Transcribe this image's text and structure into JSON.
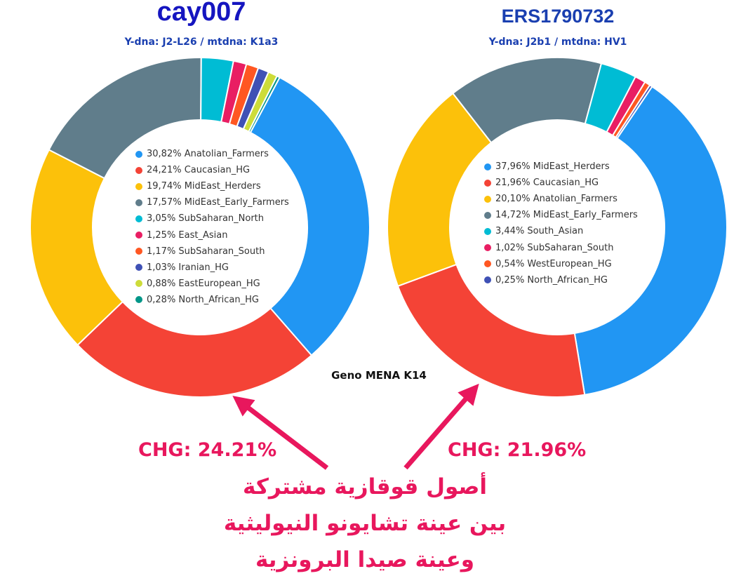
{
  "colors": {
    "Anatolian_Farmers": "#2196f3",
    "Caucasian_HG": "#f44336",
    "MidEast_Herders": "#fcc10a",
    "MidEast_Early_Farmers": "#607d8b",
    "SubSaharan_North": "#00bcd4",
    "South_Asian": "#00bcd4",
    "East_Asian": "#e91e63",
    "SubSaharan_South_left": "#ff5722",
    "SubSaharan_South_right": "#e91e63",
    "Iranian_HG": "#3f51b5",
    "EastEuropean_HG": "#cddc39",
    "North_African_HG_left": "#009688",
    "WestEuropean_HG": "#ff5722",
    "North_African_HG_right": "#3f51b5",
    "annotation": "#e8175d",
    "title_left": "#1515c0",
    "title_right": "#1a3fb0"
  },
  "center_label": "Geno MENA K14",
  "annotations": {
    "chg_left": "CHG: 24.21%",
    "chg_right": "CHG: 21.96%",
    "arabic_lines": [
      "أصول قوقازية مشتركة",
      "بين عينة تشايونو النيوليثية",
      "وعينة صيدا البرونزية"
    ]
  },
  "chart_data": [
    {
      "type": "pie",
      "variant": "donut",
      "title": "cay007",
      "subtitle": "Y-dna: J2-L26 / mtdna: K1a3",
      "legend_placement": "inside",
      "slices": [
        {
          "label": "30,82% Anatolian_Farmers",
          "name": "Anatolian_Farmers",
          "value": 30.82,
          "color": "#2196f3"
        },
        {
          "label": "24,21% Caucasian_HG",
          "name": "Caucasian_HG",
          "value": 24.21,
          "color": "#f44336"
        },
        {
          "label": "19,74% MidEast_Herders",
          "name": "MidEast_Herders",
          "value": 19.74,
          "color": "#fcc10a"
        },
        {
          "label": "17,57% MidEast_Early_Farmers",
          "name": "MidEast_Early_Farmers",
          "value": 17.57,
          "color": "#607d8b"
        },
        {
          "label": "3,05% SubSaharan_North",
          "name": "SubSaharan_North",
          "value": 3.05,
          "color": "#00bcd4"
        },
        {
          "label": "1,25% East_Asian",
          "name": "East_Asian",
          "value": 1.25,
          "color": "#e91e63"
        },
        {
          "label": "1,17% SubSaharan_South",
          "name": "SubSaharan_South",
          "value": 1.17,
          "color": "#ff5722"
        },
        {
          "label": "1,03% Iranian_HG",
          "name": "Iranian_HG",
          "value": 1.03,
          "color": "#3f51b5"
        },
        {
          "label": "0,88% EastEuropean_HG",
          "name": "EastEuropean_HG",
          "value": 0.88,
          "color": "#cddc39"
        },
        {
          "label": "0,28% North_African_HG",
          "name": "North_African_HG",
          "value": 0.28,
          "color": "#009688"
        }
      ]
    },
    {
      "type": "pie",
      "variant": "donut",
      "title": "ERS1790732",
      "subtitle": "Y-dna: J2b1 / mtdna: HV1",
      "legend_placement": "inside",
      "slices": [
        {
          "label": "37,96% MidEast_Herders",
          "name": "MidEast_Herders",
          "value": 37.96,
          "color": "#2196f3"
        },
        {
          "label": "21,96% Caucasian_HG",
          "name": "Caucasian_HG",
          "value": 21.96,
          "color": "#f44336"
        },
        {
          "label": "20,10% Anatolian_Farmers",
          "name": "Anatolian_Farmers",
          "value": 20.1,
          "color": "#fcc10a"
        },
        {
          "label": "14,72% MidEast_Early_Farmers",
          "name": "MidEast_Early_Farmers",
          "value": 14.72,
          "color": "#607d8b"
        },
        {
          "label": "3,44% South_Asian",
          "name": "South_Asian",
          "value": 3.44,
          "color": "#00bcd4"
        },
        {
          "label": "1,02% SubSaharan_South",
          "name": "SubSaharan_South",
          "value": 1.02,
          "color": "#e91e63"
        },
        {
          "label": "0,54% WestEuropean_HG",
          "name": "WestEuropean_HG",
          "value": 0.54,
          "color": "#ff5722"
        },
        {
          "label": "0,25% North_African_HG",
          "name": "North_African_HG",
          "value": 0.25,
          "color": "#3f51b5"
        }
      ]
    }
  ]
}
